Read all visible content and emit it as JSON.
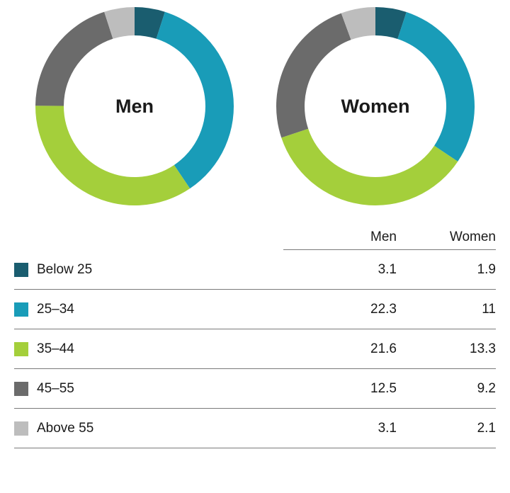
{
  "chart": {
    "type": "pie",
    "background_color": "#ffffff",
    "donut_outer_radius": 140,
    "donut_inner_radius": 100,
    "label_fontsize": 27,
    "label_fontweight": 700,
    "table_fontsize": 19,
    "grid_color": "#7a7a7a",
    "categories": [
      {
        "key": "below25",
        "label": "Below 25",
        "color": "#1a5d6f"
      },
      {
        "key": "a25_34",
        "label": "25–34",
        "color": "#199cb8"
      },
      {
        "key": "a35_44",
        "label": "35–44",
        "color": "#a4cf3b"
      },
      {
        "key": "a45_55",
        "label": "45–55",
        "color": "#6b6b6b"
      },
      {
        "key": "above55",
        "label": "Above 55",
        "color": "#bdbdbd"
      }
    ],
    "series": [
      {
        "name": "Men",
        "values": {
          "below25": 3.1,
          "a25_34": 22.3,
          "a35_44": 21.6,
          "a45_55": 12.5,
          "above55": 3.1
        }
      },
      {
        "name": "Women",
        "values": {
          "below25": 1.9,
          "a25_34": 11,
          "a35_44": 13.3,
          "a45_55": 9.2,
          "above55": 2.1
        }
      }
    ]
  }
}
